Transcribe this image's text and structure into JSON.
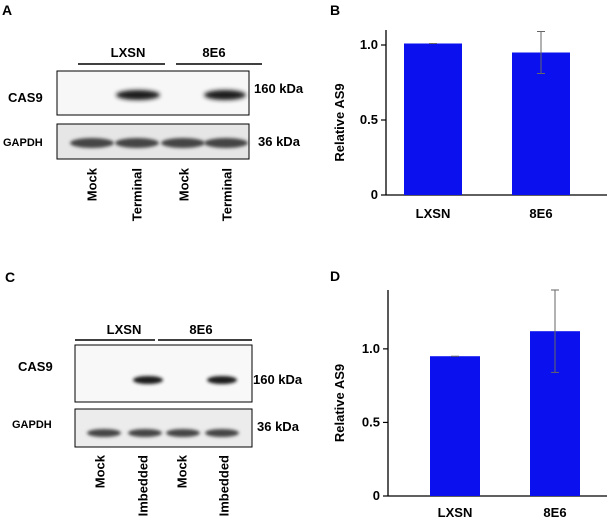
{
  "panels": {
    "A": {
      "letter": "A",
      "groups": [
        "LXSN",
        "8E6"
      ],
      "rows": [
        "CAS9",
        "GAPDH"
      ],
      "sizes": [
        "160 kDa",
        "36 kDa"
      ],
      "lanes": [
        "Mock",
        "Terminal",
        "Mock",
        "Terminal"
      ]
    },
    "B": {
      "letter": "B"
    },
    "C": {
      "letter": "C",
      "groups": [
        "LXSN",
        "8E6"
      ],
      "rows": [
        "CAS9",
        "GAPDH"
      ],
      "sizes": [
        "160 kDa",
        "36 kDa"
      ],
      "lanes": [
        "Mock",
        "Imbedded",
        "Mock",
        "Imbedded"
      ]
    },
    "D": {
      "letter": "D"
    }
  },
  "colors": {
    "bar": "#0a10ee",
    "band": "#1a1a1a"
  },
  "chart_data": [
    {
      "type": "bar",
      "panel": "B",
      "categories": [
        "LXSN",
        "8E6"
      ],
      "values": [
        1.01,
        0.95
      ],
      "error": [
        0.0,
        0.14
      ],
      "ylabel": "Relative AS9",
      "yticks": [
        "0",
        "0.5",
        "1.0"
      ],
      "ylim": [
        0,
        1.1
      ]
    },
    {
      "type": "bar",
      "panel": "D",
      "categories": [
        "LXSN",
        "8E6"
      ],
      "values": [
        0.95,
        1.12
      ],
      "error": [
        0.0,
        0.28
      ],
      "ylabel": "Relative AS9",
      "yticks": [
        "0",
        "0.5",
        "1.0"
      ],
      "ylim": [
        0,
        1.4
      ]
    }
  ]
}
